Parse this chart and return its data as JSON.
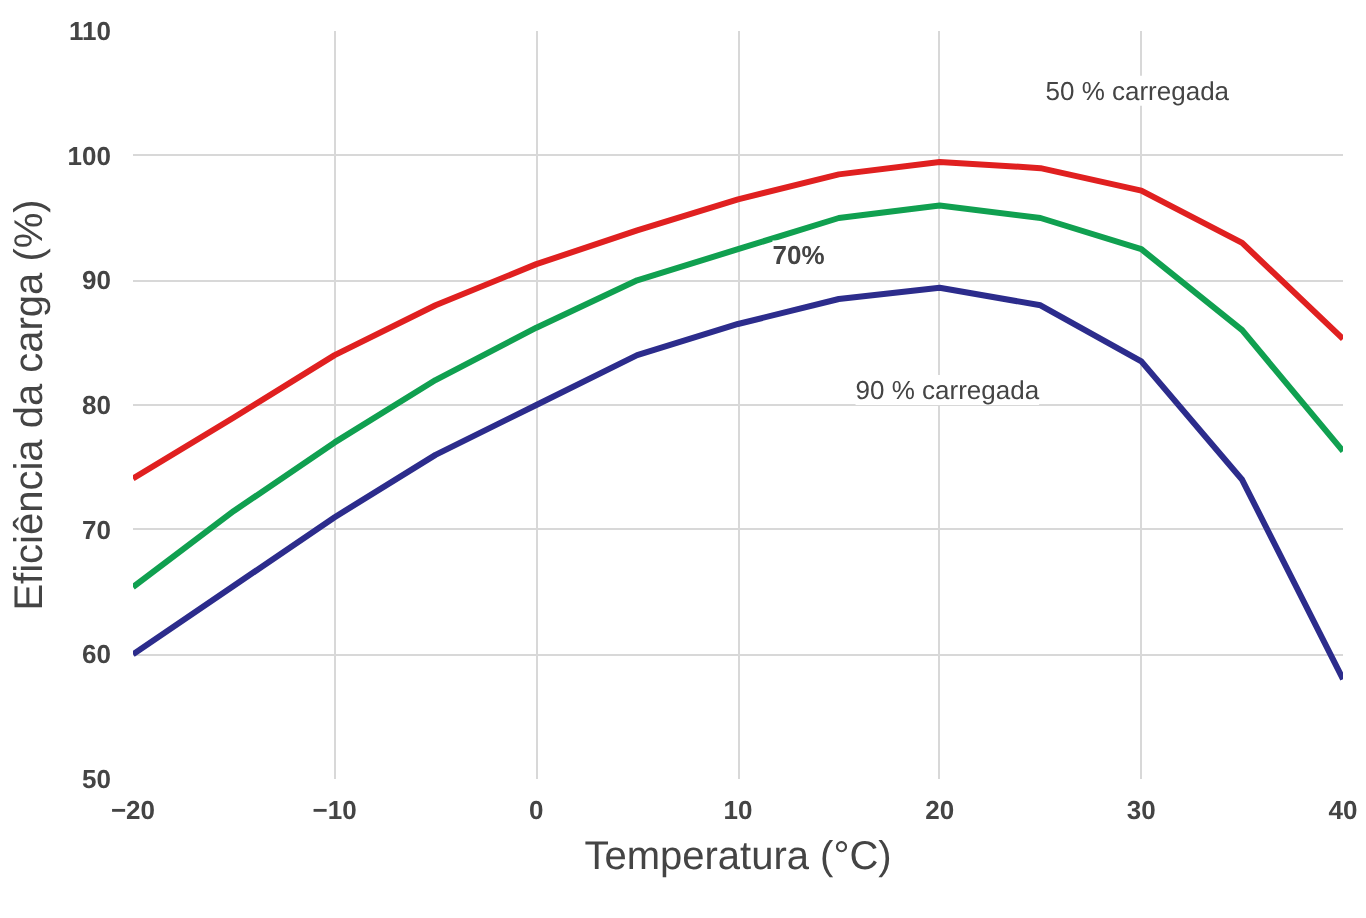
{
  "chart_data": {
    "type": "line",
    "xlabel": "Temperatura (°C)",
    "ylabel": "Eficiência da carga (%)",
    "x": [
      -20,
      -15,
      -10,
      -5,
      0,
      5,
      10,
      15,
      20,
      25,
      30,
      35,
      40
    ],
    "series": [
      {
        "color": "#e02020",
        "values": [
          74.1,
          79,
          84,
          88,
          91.3,
          94,
          96.5,
          98.5,
          99.5,
          99,
          97.2,
          93,
          85.3
        ]
      },
      {
        "color": "#10a050",
        "values": [
          65.4,
          71.5,
          77,
          82,
          86.2,
          90,
          92.5,
          95,
          96,
          95,
          92.5,
          86,
          76.3
        ]
      },
      {
        "color": "#2c2c8c",
        "values": [
          60,
          65.5,
          71,
          76,
          80,
          84,
          86.5,
          88.5,
          89.4,
          88,
          83.5,
          74,
          58
        ]
      }
    ],
    "annotations": [
      "50 % carregada",
      {
        "text": "70%",
        "x": 13,
        "y": 92
      },
      "90 % carregada"
    ],
    "xlim": [
      -20,
      40
    ],
    "ylim": [
      50,
      110
    ],
    "xticks": [
      -20,
      -10,
      0,
      10,
      20,
      30,
      40
    ],
    "yticks": [
      50,
      60,
      70,
      80,
      90,
      100,
      110
    ],
    "grid": true,
    "marker": "none",
    "line_style": "solid"
  }
}
